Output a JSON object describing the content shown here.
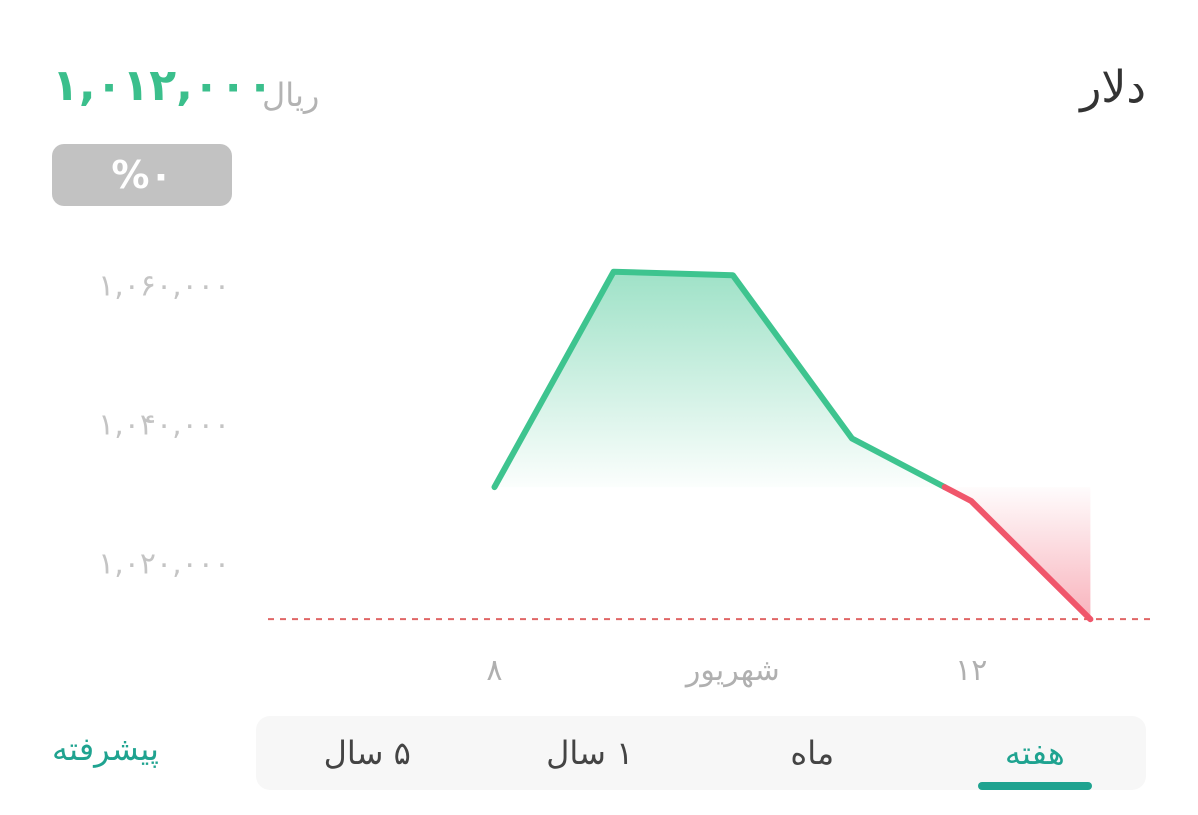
{
  "header": {
    "title": "دلار",
    "price": "۱,۰۱۲,۰۰۰",
    "currency": "ریال",
    "change": "%۰"
  },
  "tabs": [
    {
      "label": "هفته",
      "active": true
    },
    {
      "label": "ماه",
      "active": false
    },
    {
      "label": "۱ سال",
      "active": false
    },
    {
      "label": "۵ سال",
      "active": false
    }
  ],
  "advanced_label": "پیشرفته",
  "chart_data": {
    "type": "area",
    "y_ticks": [
      {
        "value": 1060000,
        "label": "۱,۰۶۰,۰۰۰"
      },
      {
        "value": 1040000,
        "label": "۱,۰۴۰,۰۰۰"
      },
      {
        "value": 1020000,
        "label": "۱,۰۲۰,۰۰۰"
      }
    ],
    "x_ticks": [
      {
        "x": 8,
        "label": "۸"
      },
      {
        "x": 10,
        "label": "شهریور"
      },
      {
        "x": 12,
        "label": "۱۲"
      }
    ],
    "x": [
      8,
      9,
      10,
      11,
      12,
      13
    ],
    "values": [
      1031000,
      1062000,
      1061500,
      1038000,
      1029000,
      1012000
    ],
    "reference_value": 1012000,
    "ylim": [
      1009000,
      1068000
    ],
    "xlim": [
      6.1,
      13.5
    ],
    "colors": {
      "up": "#3ec48f",
      "down": "#f0566b",
      "reference": "#e06666"
    }
  }
}
